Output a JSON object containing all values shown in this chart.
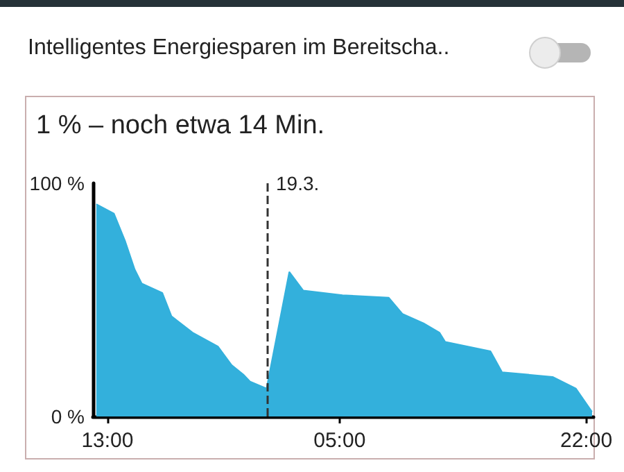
{
  "chart_data": {
    "type": "area",
    "title": "1 % – noch etwa 14 Min.",
    "annotations": [
      "Intelligentes Energiesparen im Bereitscha.."
    ],
    "x": [
      "--03-18T12:14",
      "--03-18T13:27",
      "--03-18T14:14",
      "--03-18T14:53",
      "--03-18T15:22",
      "--03-18T16:47",
      "--03-18T17:25",
      "--03-18T18:52",
      "--03-18T20:37",
      "--03-18T21:34",
      "--03-18T22:22",
      "--03-18T22:50",
      "--03-18T23:58",
      "--03-19T01:32",
      "--03-19T02:30",
      "--03-19T05:12",
      "--03-19T08:23",
      "--03-19T09:20",
      "--03-19T10:47",
      "--03-19T11:53",
      "--03-19T12:17",
      "--03-19T15:24",
      "--03-19T16:12",
      "--03-19T19:41",
      "--03-19T21:17",
      "--03-19T22:24"
    ],
    "series": [
      {
        "color": "#33b0dc",
        "values": [
          91,
          87,
          75,
          63,
          57,
          53,
          43,
          36,
          30,
          22,
          18,
          15,
          12,
          62,
          54,
          52,
          51,
          44,
          40,
          36,
          32,
          28,
          19,
          17,
          12,
          2
        ]
      }
    ],
    "xlim": [
      "--03-18T12:00",
      "--03-19T22:30"
    ],
    "xticks": [
      {
        "value": "--03-18T13:00",
        "label": "13:00"
      },
      {
        "value": "--03-19T05:00",
        "label": "05:00"
      },
      {
        "value": "--03-19T22:00",
        "label": "22:00"
      }
    ],
    "ylim": [
      0,
      100
    ],
    "yticks": [
      {
        "value": 0,
        "label": "0 %"
      },
      {
        "value": 100,
        "label": "100 %"
      }
    ],
    "ref_lines": [
      {
        "axis": "x",
        "value": "--03-19",
        "label": "19.3.",
        "line_style": "dashed",
        "color": "#333333"
      }
    ]
  }
}
